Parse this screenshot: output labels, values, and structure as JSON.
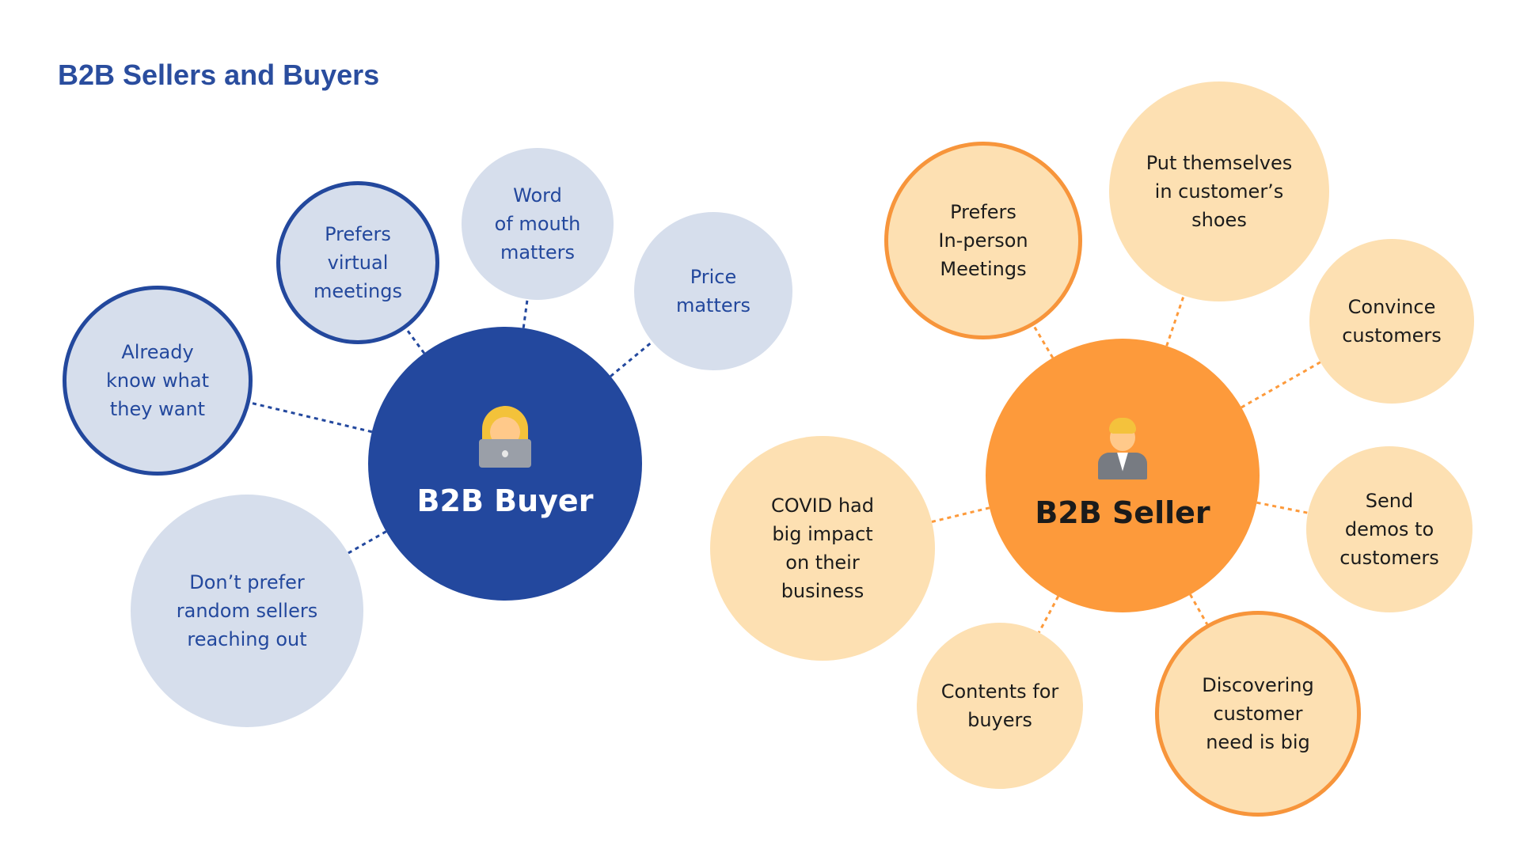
{
  "title": "B2B Sellers and Buyers",
  "colors": {
    "buyer_primary": "#23489e",
    "buyer_light": "#d6deec",
    "seller_primary": "#fd9a3b",
    "seller_light": "#fde0b2",
    "title": "#2a4d9e"
  },
  "buyer": {
    "label": "B2B Buyer",
    "icon": "person-with-laptop-icon",
    "nodes": [
      {
        "text": "Prefers\nvirtual\nmeetings",
        "ring": true
      },
      {
        "text": "Word\nof mouth\nmatters",
        "ring": false
      },
      {
        "text": "Price\nmatters",
        "ring": false
      },
      {
        "text": "Already\nknow what\nthey want",
        "ring": true
      },
      {
        "text": "Don’t prefer\nrandom sellers\nreaching out",
        "ring": false
      }
    ]
  },
  "seller": {
    "label": "B2B Seller",
    "icon": "person-in-suit-icon",
    "nodes": [
      {
        "text": "Prefers\nIn-person\nMeetings",
        "ring": true
      },
      {
        "text": "Put themselves\nin customer’s\nshoes",
        "ring": false
      },
      {
        "text": "Convince\ncustomers",
        "ring": false
      },
      {
        "text": "Send\ndemos to\ncustomers",
        "ring": false
      },
      {
        "text": "Discovering\ncustomer\nneed is big",
        "ring": true
      },
      {
        "text": "Contents for\nbuyers",
        "ring": false
      },
      {
        "text": "COVID had\nbig impact\non their\nbusiness",
        "ring": false
      }
    ]
  }
}
